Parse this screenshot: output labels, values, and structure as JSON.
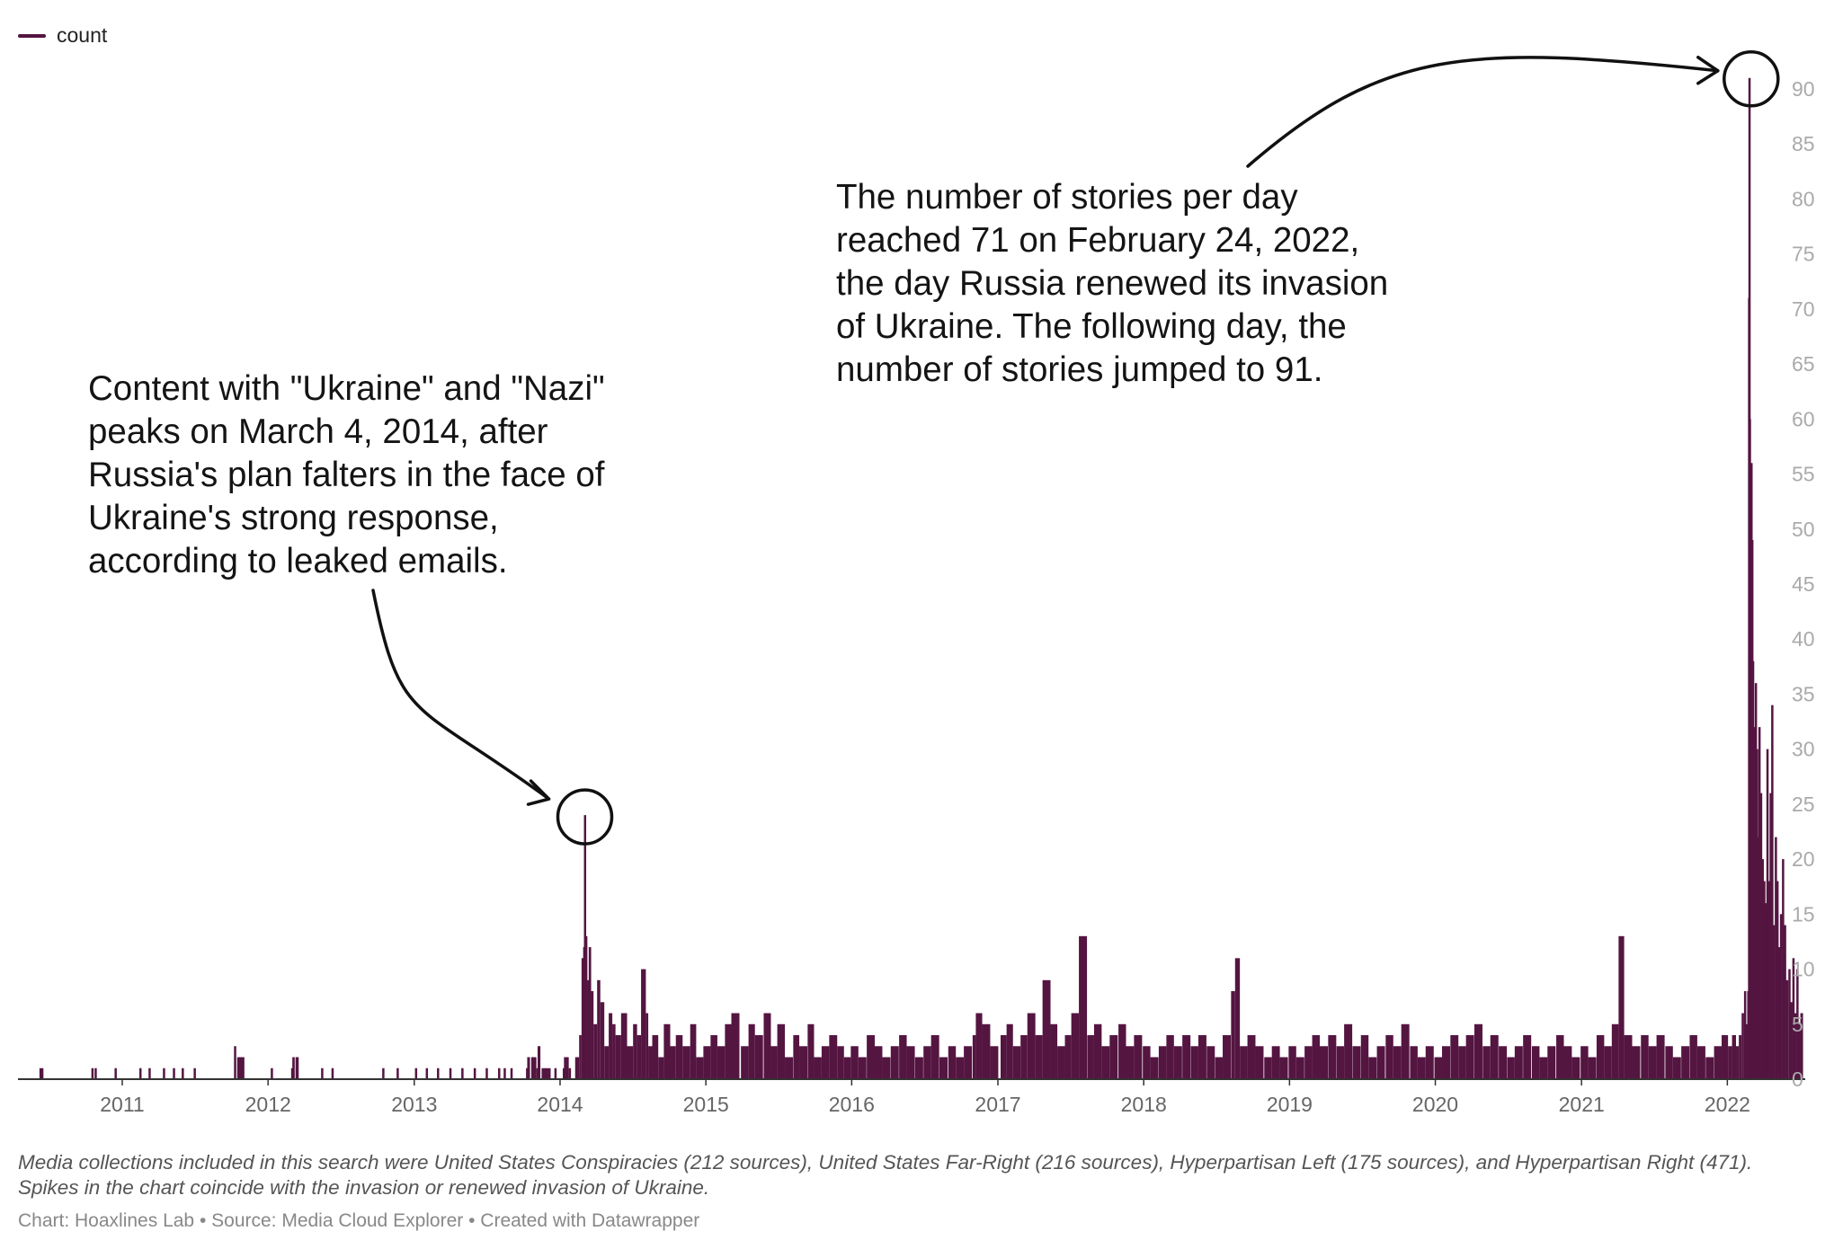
{
  "chart_data": {
    "type": "area",
    "series": [
      {
        "name": "count",
        "color": "#541541",
        "x": [
          "2010-06-01",
          "2010-06-10",
          "2010-06-20",
          "2010-07-01",
          "2010-09-01",
          "2010-10-18",
          "2010-10-19",
          "2010-10-26",
          "2010-10-27",
          "2010-12-15",
          "2010-12-16",
          "2011-02-15",
          "2011-02-16",
          "2011-03-10",
          "2011-03-11",
          "2011-04-15",
          "2011-04-16",
          "2011-05-10",
          "2011-05-11",
          "2011-06-01",
          "2011-06-02",
          "2011-07-01",
          "2011-07-02",
          "2011-10-10",
          "2011-10-12",
          "2011-10-18",
          "2011-11-05",
          "2011-11-07",
          "2012-01-10",
          "2012-01-12",
          "2012-03-01",
          "2012-03-04",
          "2012-03-10",
          "2012-03-12",
          "2012-03-20",
          "2012-03-22",
          "2012-05-15",
          "2012-05-18",
          "2012-06-10",
          "2012-06-13",
          "2012-10-15",
          "2012-10-18",
          "2012-11-20",
          "2012-11-23",
          "2013-01-05",
          "2013-01-08",
          "2013-02-01",
          "2013-02-04",
          "2013-03-01",
          "2013-03-04",
          "2013-04-01",
          "2013-04-04",
          "2013-05-01",
          "2013-05-04",
          "2013-06-01",
          "2013-06-04",
          "2013-07-01",
          "2013-07-04",
          "2013-08-01",
          "2013-08-04",
          "2013-08-15",
          "2013-08-18",
          "2013-09-01",
          "2013-09-04",
          "2013-10-10",
          "2013-10-13",
          "2013-10-20",
          "2013-10-23",
          "2013-11-05",
          "2013-11-08",
          "2013-11-15",
          "2013-11-18",
          "2013-12-05",
          "2013-12-08",
          "2013-12-20",
          "2013-12-23",
          "2014-01-10",
          "2014-01-13",
          "2014-01-25",
          "2014-01-28",
          "2014-02-10",
          "2014-02-20",
          "2014-02-26",
          "2014-03-02",
          "2014-03-04",
          "2014-03-07",
          "2014-03-12",
          "2014-03-16",
          "2014-03-22",
          "2014-03-28",
          "2014-04-06",
          "2014-04-14",
          "2014-04-24",
          "2014-05-05",
          "2014-05-14",
          "2014-05-22",
          "2014-06-05",
          "2014-06-20",
          "2014-07-05",
          "2014-07-15",
          "2014-07-25",
          "2014-08-06",
          "2014-08-12",
          "2014-08-22",
          "2014-09-06",
          "2014-09-20",
          "2014-10-06",
          "2014-10-20",
          "2014-11-06",
          "2014-11-25",
          "2014-12-10",
          "2014-12-28",
          "2015-01-15",
          "2015-02-01",
          "2015-02-20",
          "2015-03-08",
          "2015-04-01",
          "2015-04-20",
          "2015-05-06",
          "2015-05-28",
          "2015-06-15",
          "2015-07-01",
          "2015-07-20",
          "2015-08-10",
          "2015-08-25",
          "2015-09-15",
          "2015-10-01",
          "2015-10-20",
          "2015-11-08",
          "2015-11-28",
          "2015-12-15",
          "2016-01-01",
          "2016-01-20",
          "2016-02-10",
          "2016-03-01",
          "2016-03-20",
          "2016-04-10",
          "2016-05-01",
          "2016-05-20",
          "2016-06-10",
          "2016-07-01",
          "2016-07-20",
          "2016-08-10",
          "2016-09-01",
          "2016-09-20",
          "2016-10-10",
          "2016-11-01",
          "2016-11-09",
          "2016-11-25",
          "2016-12-15",
          "2017-01-10",
          "2017-01-25",
          "2017-02-10",
          "2017-03-01",
          "2017-03-18",
          "2017-04-07",
          "2017-04-25",
          "2017-05-15",
          "2017-06-01",
          "2017-06-20",
          "2017-07-06",
          "2017-07-25",
          "2017-08-15",
          "2017-09-01",
          "2017-09-20",
          "2017-10-10",
          "2017-11-01",
          "2017-11-20",
          "2017-12-10",
          "2018-01-01",
          "2018-01-20",
          "2018-02-10",
          "2018-03-01",
          "2018-03-20",
          "2018-04-10",
          "2018-05-01",
          "2018-05-20",
          "2018-06-10",
          "2018-07-01",
          "2018-07-20",
          "2018-08-10",
          "2018-08-20",
          "2018-09-01",
          "2018-09-20",
          "2018-10-10",
          "2018-11-01",
          "2018-11-20",
          "2018-12-10",
          "2019-01-01",
          "2019-01-20",
          "2019-02-10",
          "2019-03-01",
          "2019-03-20",
          "2019-04-10",
          "2019-05-01",
          "2019-05-20",
          "2019-06-10",
          "2019-07-01",
          "2019-07-20",
          "2019-08-10",
          "2019-09-01",
          "2019-09-20",
          "2019-10-10",
          "2019-11-01",
          "2019-11-20",
          "2019-12-10",
          "2020-01-01",
          "2020-01-20",
          "2020-02-10",
          "2020-03-01",
          "2020-03-20",
          "2020-04-10",
          "2020-05-01",
          "2020-05-20",
          "2020-06-10",
          "2020-07-01",
          "2020-07-20",
          "2020-08-10",
          "2020-09-01",
          "2020-09-20",
          "2020-10-10",
          "2020-11-01",
          "2020-11-20",
          "2020-12-10",
          "2021-01-01",
          "2021-01-20",
          "2021-02-10",
          "2021-03-01",
          "2021-03-20",
          "2021-04-06",
          "2021-04-20",
          "2021-05-10",
          "2021-06-01",
          "2021-06-20",
          "2021-07-10",
          "2021-08-01",
          "2021-08-20",
          "2021-09-10",
          "2021-10-01",
          "2021-10-20",
          "2021-11-10",
          "2021-12-01",
          "2021-12-20",
          "2022-01-05",
          "2022-01-15",
          "2022-01-25",
          "2022-02-01",
          "2022-02-08",
          "2022-02-14",
          "2022-02-18",
          "2022-02-22",
          "2022-02-24",
          "2022-02-25",
          "2022-02-26",
          "2022-02-28",
          "2022-03-02",
          "2022-03-04",
          "2022-03-06",
          "2022-03-08",
          "2022-03-10",
          "2022-03-13",
          "2022-03-16",
          "2022-03-19",
          "2022-03-22",
          "2022-03-26",
          "2022-03-30",
          "2022-04-03",
          "2022-04-07",
          "2022-04-11",
          "2022-04-15",
          "2022-04-19",
          "2022-04-23",
          "2022-04-27",
          "2022-05-02",
          "2022-05-06",
          "2022-05-10",
          "2022-05-15",
          "2022-05-20",
          "2022-05-25",
          "2022-05-30",
          "2022-06-05",
          "2022-06-10",
          "2022-06-15",
          "2022-06-20",
          "2022-06-25",
          "2022-06-30",
          "2022-07-05"
        ],
        "y": [
          0,
          1,
          0,
          0,
          0,
          1,
          0,
          1,
          0,
          1,
          0,
          1,
          0,
          1,
          0,
          1,
          0,
          1,
          0,
          1,
          0,
          1,
          0,
          3,
          0,
          2,
          0,
          0,
          1,
          0,
          1,
          2,
          0,
          2,
          0,
          0,
          1,
          0,
          1,
          0,
          1,
          0,
          1,
          0,
          1,
          0,
          1,
          0,
          1,
          0,
          1,
          0,
          1,
          0,
          1,
          0,
          1,
          0,
          1,
          0,
          1,
          0,
          1,
          0,
          1,
          2,
          0,
          2,
          1,
          3,
          0,
          1,
          1,
          0,
          1,
          0,
          1,
          2,
          1,
          0,
          2,
          4,
          11,
          12,
          24,
          13,
          9,
          12,
          8,
          5,
          9,
          7,
          3,
          6,
          5,
          4,
          6,
          3,
          5,
          4,
          10,
          6,
          3,
          4,
          2,
          5,
          3,
          4,
          3,
          5,
          2,
          3,
          4,
          3,
          5,
          6,
          3,
          5,
          4,
          6,
          3,
          5,
          2,
          4,
          3,
          5,
          2,
          3,
          4,
          3,
          2,
          3,
          2,
          4,
          3,
          2,
          3,
          4,
          3,
          2,
          3,
          4,
          2,
          3,
          2,
          3,
          4,
          6,
          5,
          3,
          4,
          5,
          3,
          4,
          6,
          4,
          9,
          5,
          3,
          4,
          6,
          13,
          4,
          5,
          3,
          4,
          5,
          3,
          4,
          3,
          2,
          3,
          4,
          3,
          4,
          3,
          4,
          3,
          2,
          4,
          8,
          11,
          3,
          4,
          3,
          2,
          3,
          2,
          3,
          2,
          3,
          4,
          3,
          4,
          3,
          5,
          3,
          4,
          2,
          3,
          4,
          3,
          5,
          3,
          2,
          3,
          2,
          3,
          4,
          3,
          4,
          5,
          3,
          4,
          3,
          2,
          3,
          4,
          3,
          2,
          3,
          4,
          3,
          2,
          3,
          2,
          4,
          3,
          5,
          13,
          4,
          3,
          4,
          3,
          4,
          3,
          2,
          3,
          4,
          3,
          2,
          3,
          4,
          3,
          4,
          3,
          4,
          6,
          8,
          5,
          8,
          71,
          91,
          60,
          45,
          56,
          49,
          38,
          32,
          28,
          36,
          30,
          22,
          32,
          26,
          20,
          18,
          16,
          30,
          18,
          26,
          34,
          14,
          22,
          18,
          12,
          15,
          20,
          14,
          9,
          10,
          7,
          11,
          6,
          10,
          5,
          6
        ]
      }
    ],
    "xlabel": "",
    "ylabel": "",
    "x_ticks": [
      "2011",
      "2012",
      "2013",
      "2014",
      "2015",
      "2016",
      "2017",
      "2018",
      "2019",
      "2020",
      "2021",
      "2022"
    ],
    "y_ticks": [
      0,
      5,
      10,
      15,
      20,
      25,
      30,
      35,
      40,
      45,
      50,
      55,
      60,
      65,
      70,
      75,
      80,
      85,
      90
    ],
    "xlim": [
      "2010-04-15",
      "2022-07-15"
    ],
    "ylim": [
      0,
      90
    ],
    "grid": false,
    "legend_position": "top-left",
    "y_axis_side": "right",
    "highlights": [
      {
        "date": "2014-03-04",
        "value": 24
      },
      {
        "date": "2022-02-25",
        "value": 91
      }
    ]
  },
  "legend": {
    "label": "count",
    "color": "#541541"
  },
  "annotations": {
    "peak_2014": "Content with \"Ukraine\" and \"Nazi\"\npeaks on March 4, 2014, after\nRussia's plan falters in the face of\nUkraine's strong response,\naccording to leaked emails.",
    "peak_2022": "The number of stories per day\nreached 71 on February 24, 2022,\nthe day Russia renewed its invasion\nof Ukraine. The following day, the\nnumber of stories jumped to 91."
  },
  "notes": "Media collections included in this search were United States Conspiracies (212 sources), United States Far-Right (216 sources), Hyperpartisan Left (175 sources), and Hyperpartisan Right (471). Spikes in the chart coincide with the invasion or renewed invasion of Ukraine.",
  "credits": "Chart: Hoaxlines Lab • Source: Media Cloud Explorer • Created with Datawrapper"
}
